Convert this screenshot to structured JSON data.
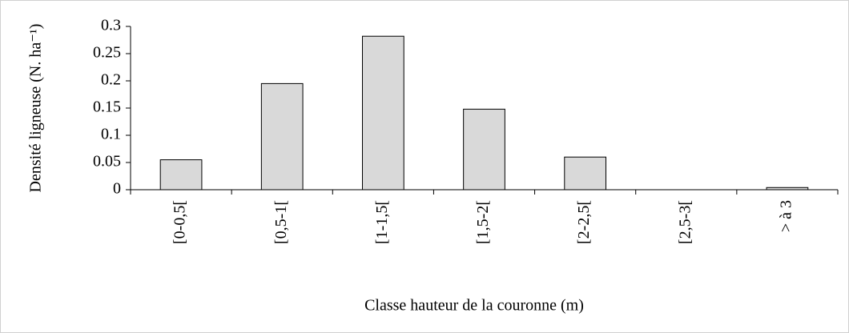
{
  "chart_data": {
    "type": "bar",
    "categories": [
      "[0-0,5[",
      "[0,5-1[",
      "[1-1,5[",
      "[1,5-2[",
      "[2-2,5[",
      "[2,5-3[",
      "> à 3"
    ],
    "values": [
      0.055,
      0.195,
      0.282,
      0.148,
      0.06,
      0,
      0.004
    ],
    "color": "#d9d9d9",
    "ylim": [
      0,
      0.3
    ],
    "yticks": [
      0,
      0.05,
      0.1,
      0.15,
      0.2,
      0.25,
      0.3
    ],
    "xlabel": "Classe hauteur de la couronne (m)",
    "ylabel": "Densité ligneuse (N. ha⁻¹)",
    "grid": false
  }
}
